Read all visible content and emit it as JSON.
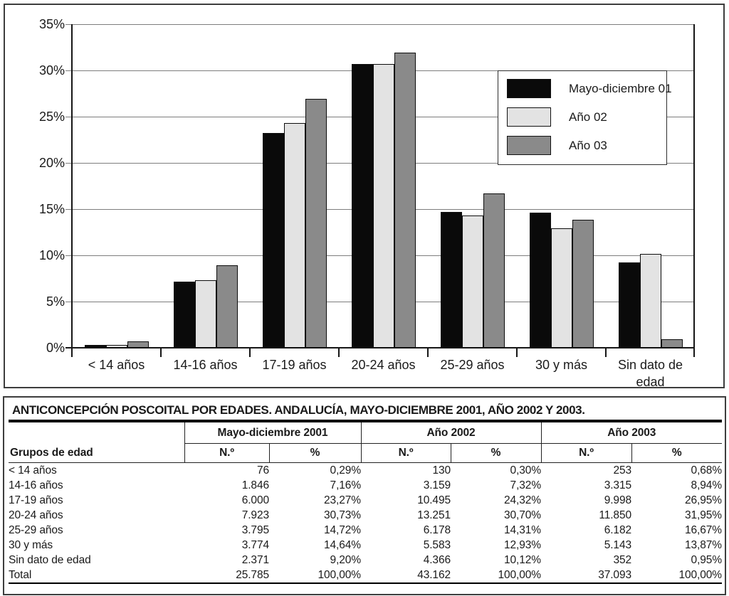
{
  "chart_data": {
    "type": "bar",
    "categories": [
      "< 14 años",
      "14-16 años",
      "17-19 años",
      "20-24 años",
      "25-29 años",
      "30 y más",
      "Sin dato de edad"
    ],
    "series": [
      {
        "name": "Mayo-diciembre 01",
        "color": "#0a0a0a",
        "values": [
          0.29,
          7.16,
          23.27,
          30.73,
          14.72,
          14.64,
          9.2
        ]
      },
      {
        "name": "Año 02",
        "color": "#e3e3e3",
        "values": [
          0.3,
          7.32,
          24.32,
          30.7,
          14.31,
          12.93,
          10.12
        ]
      },
      {
        "name": "Año 03",
        "color": "#8a8a8a",
        "values": [
          0.68,
          8.94,
          26.95,
          31.95,
          16.67,
          13.87,
          0.95
        ]
      }
    ],
    "ylim": [
      0,
      35
    ],
    "ytick_step": 5,
    "ytick_suffix": "%",
    "xlabel": "",
    "ylabel": "",
    "grid": true,
    "legend_position": "upper-right"
  },
  "table": {
    "title": "ANTICONCEPCIÓN POSCOITAL POR EDADES. ANDALUCÍA, MAYO-DICIEMBRE 2001, AÑO 2002 Y 2003.",
    "row_header_label": "Grupos de edad",
    "group_headers": [
      "Mayo-diciembre 2001",
      "Año 2002",
      "Año 2003"
    ],
    "sub_headers": [
      "N.º",
      "%"
    ],
    "rows": [
      {
        "label": "< 14 años",
        "values": [
          "76",
          "0,29%",
          "130",
          "0,30%",
          "253",
          "0,68%"
        ]
      },
      {
        "label": "14-16 años",
        "values": [
          "1.846",
          "7,16%",
          "3.159",
          "7,32%",
          "3.315",
          "8,94%"
        ]
      },
      {
        "label": "17-19 años",
        "values": [
          "6.000",
          "23,27%",
          "10.495",
          "24,32%",
          "9.998",
          "26,95%"
        ]
      },
      {
        "label": "20-24 años",
        "values": [
          "7.923",
          "30,73%",
          "13.251",
          "30,70%",
          "11.850",
          "31,95%"
        ]
      },
      {
        "label": "25-29 años",
        "values": [
          "3.795",
          "14,72%",
          "6.178",
          "14,31%",
          "6.182",
          "16,67%"
        ]
      },
      {
        "label": "30 y más",
        "values": [
          "3.774",
          "14,64%",
          "5.583",
          "12,93%",
          "5.143",
          "13,87%"
        ]
      },
      {
        "label": "Sin dato de edad",
        "values": [
          "2.371",
          "9,20%",
          "4.366",
          "10,12%",
          "352",
          "0,95%"
        ]
      },
      {
        "label": "Total",
        "values": [
          "25.785",
          "100,00%",
          "43.162",
          "100,00%",
          "37.093",
          "100,00%"
        ]
      }
    ]
  },
  "colors": {
    "axis": "#161616",
    "grid": "#7d7d7d",
    "bar_border": "#0d0d0d",
    "panel_border": "#3d3d3d"
  }
}
